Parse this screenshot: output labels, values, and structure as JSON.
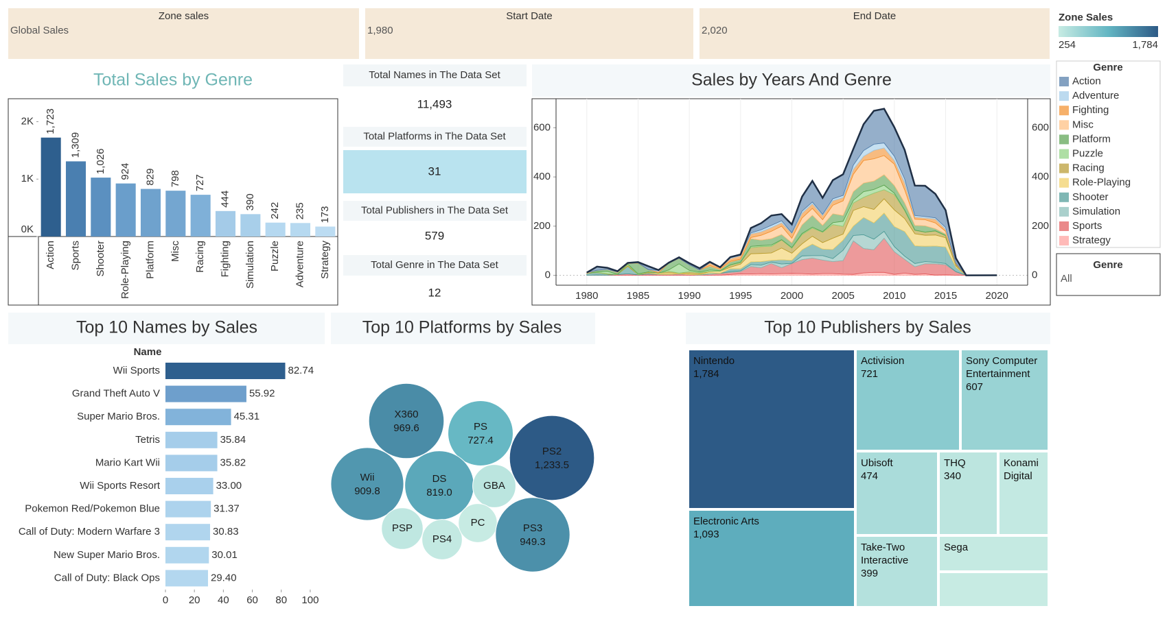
{
  "filters": [
    {
      "title": "Zone sales",
      "value": "Global Sales"
    },
    {
      "title": "Start Date",
      "value": "1,980"
    },
    {
      "title": "End Date",
      "value": "2,020"
    }
  ],
  "kpis": [
    {
      "title": "Total Names in The Data Set",
      "value": "11,493"
    },
    {
      "title": "Total Platforms in The Data Set",
      "value": "31"
    },
    {
      "title": "Total Publishers in The Data Set",
      "value": "579"
    },
    {
      "title": "Total Genre in The Data Set",
      "value": "12"
    }
  ],
  "zone_sales_legend": {
    "title": "Zone Sales",
    "ticks": [
      254,
      {
        "value": 1784,
        "label": "1,784"
      }
    ],
    "colors": [
      "#c7ebe3",
      "#63b6c3",
      "#2d5a86"
    ]
  },
  "genre_filter": {
    "title": "Genre",
    "value": "All"
  },
  "chart_data": [
    {
      "type": "bar",
      "title": "Total Sales by Genre",
      "categories": [
        "Action",
        "Sports",
        "Shooter",
        "Role-Playing",
        "Platform",
        "Misc",
        "Racing",
        "Fighting",
        "Simulation",
        "Puzzle",
        "Adventure",
        "Strategy"
      ],
      "values": [
        1723,
        1309,
        1026,
        924,
        829,
        798,
        727,
        444,
        390,
        242,
        235,
        173
      ],
      "value_labels": [
        "1,723",
        "1,309",
        "1,026",
        "924",
        "829",
        "798",
        "727",
        "444",
        "390",
        "242",
        "235",
        "173"
      ],
      "colors": [
        "#2e5f8e",
        "#4a7fb0",
        "#5b90c0",
        "#6a9ecb",
        "#6fa2cd",
        "#74a6d0",
        "#7fb0d8",
        "#a4cbe8",
        "#a8cfea",
        "#b5d8f0",
        "#b6d9f0",
        "#bcdcf2"
      ],
      "ylim": [
        0,
        2400
      ],
      "yticks": [
        {
          "value": 0,
          "label": "0K"
        },
        {
          "value": 1000,
          "label": "1K"
        },
        {
          "value": 2000,
          "label": "2K"
        }
      ]
    },
    {
      "type": "stacked_area",
      "title": "Sales by Years And Genre",
      "legend_title": "Genre",
      "x": [
        1980,
        1981,
        1982,
        1983,
        1984,
        1985,
        1986,
        1987,
        1988,
        1989,
        1990,
        1991,
        1992,
        1993,
        1994,
        1995,
        1996,
        1997,
        1998,
        1999,
        2000,
        2001,
        2002,
        2003,
        2004,
        2005,
        2006,
        2007,
        2008,
        2009,
        2010,
        2011,
        2012,
        2013,
        2014,
        2015,
        2016,
        2017,
        2020
      ],
      "series": [
        {
          "name": "Action",
          "color": "#4e79a7",
          "values": [
            0.3,
            14.8,
            6.5,
            2.9,
            1.9,
            3.5,
            13.7,
            1.1,
            1.7,
            4.6,
            6.4,
            6.8,
            3.8,
            2,
            2.1,
            3.8,
            20,
            27,
            40,
            27,
            34,
            59,
            86,
            67,
            76,
            86,
            66,
            107,
            136,
            139,
            118,
            118,
            122,
            125,
            97,
            70,
            20,
            0,
            0
          ]
        },
        {
          "name": "Adventure",
          "color": "#a0cbe8",
          "values": [
            0,
            0,
            0,
            0.4,
            0,
            0,
            0,
            4.4,
            0,
            0,
            0,
            0,
            0.1,
            0,
            4,
            1,
            4,
            8,
            9,
            8,
            2,
            8,
            7,
            5,
            8,
            9,
            17,
            23,
            25,
            20,
            17,
            15,
            6,
            6,
            5,
            8,
            1,
            0,
            0
          ]
        },
        {
          "name": "Fighting",
          "color": "#f28e2b",
          "values": [
            0.8,
            0,
            0,
            0,
            0,
            1.1,
            0,
            5.4,
            0,
            0,
            0,
            0.4,
            11,
            4.5,
            11,
            14,
            14.7,
            14,
            15,
            14,
            20,
            20,
            19,
            17,
            18,
            13,
            20,
            17,
            34,
            31,
            15,
            29,
            9,
            7,
            16,
            8,
            4,
            0,
            0
          ]
        },
        {
          "name": "Misc",
          "color": "#ffbe7d",
          "values": [
            2.7,
            0,
            0.9,
            2.1,
            1.5,
            0,
            0,
            0,
            0,
            1.3,
            0,
            0,
            3.4,
            3,
            3,
            1.5,
            5,
            20,
            30,
            34,
            19,
            28,
            28,
            23,
            35,
            60,
            71,
            92,
            91,
            78,
            87,
            54,
            25,
            25,
            24,
            11,
            1,
            0,
            0
          ]
        },
        {
          "name": "Platform",
          "color": "#59a14f",
          "values": [
            0,
            6.9,
            7,
            6.9,
            0.7,
            43.2,
            9.4,
            1.7,
            27.7,
            20.7,
            22.9,
            7.6,
            15,
            4.2,
            11.4,
            11,
            31,
            22,
            26,
            21,
            19,
            35,
            48,
            26,
            36,
            23,
            35,
            35,
            34,
            42,
            31,
            28,
            19,
            25,
            8,
            6,
            2,
            0,
            0
          ]
        },
        {
          "name": "Puzzle",
          "color": "#8cd17d",
          "values": [
            0,
            2.2,
            10,
            0.8,
            3.1,
            3.2,
            0,
            0,
            5.6,
            37.8,
            5.6,
            3.2,
            5.5,
            2.6,
            1.4,
            2.1,
            5,
            4,
            5,
            1,
            3,
            4,
            4,
            2,
            8,
            21,
            11,
            23,
            15,
            19,
            6,
            3,
            1,
            1,
            1,
            1,
            0,
            0,
            0
          ]
        },
        {
          "name": "Racing",
          "color": "#b6992d",
          "values": [
            0,
            0.5,
            1.6,
            0,
            6,
            0,
            2,
            0,
            6.7,
            0,
            6.3,
            4.6,
            1.1,
            0.1,
            8.1,
            5.9,
            25,
            28,
            27,
            33,
            20,
            38,
            33,
            42,
            55,
            31,
            30,
            38,
            66,
            37,
            62,
            32,
            14,
            12,
            16,
            8,
            3,
            0,
            0
          ]
        },
        {
          "name": "Role-Playing",
          "color": "#f1ce63",
          "values": [
            0,
            0,
            0,
            0,
            0,
            0,
            2.5,
            4.7,
            5.9,
            2.2,
            4.5,
            2.9,
            5.3,
            8,
            7,
            19,
            33,
            33,
            30,
            48,
            29,
            24,
            32,
            26,
            46,
            25,
            64,
            44,
            55,
            58,
            68,
            53,
            49,
            45,
            45,
            38,
            6,
            0.05,
            0
          ]
        },
        {
          "name": "Shooter",
          "color": "#499894",
          "values": [
            7.1,
            10,
            3.8,
            0.5,
            31.1,
            1,
            3.9,
            0.7,
            0.5,
            1.2,
            0,
            1.4,
            0.6,
            0.7,
            11,
            8,
            11,
            15,
            7,
            17,
            12,
            25,
            47,
            27,
            37,
            41,
            38,
            70,
            66,
            74,
            81,
            100,
            72,
            62,
            66,
            67,
            18,
            0,
            0
          ]
        },
        {
          "name": "Simulation",
          "color": "#86bcb6",
          "values": [
            0,
            0.4,
            0,
            0,
            0,
            0.04,
            0,
            0,
            0.03,
            0,
            0.2,
            0,
            4.8,
            0,
            3.6,
            3.1,
            8,
            10,
            6,
            15,
            1,
            15,
            10,
            18,
            12,
            42,
            22,
            56,
            43,
            28,
            21,
            13,
            13,
            9,
            6,
            5,
            0,
            0,
            0.29
          ]
        },
        {
          "name": "Sports",
          "color": "#e15759",
          "values": [
            0.5,
            0.8,
            1.1,
            3.2,
            6.2,
            1.9,
            5.6,
            3.7,
            3.6,
            5.7,
            3.6,
            0.9,
            4,
            7,
            8.1,
            9,
            30,
            24,
            42,
            24,
            40,
            57,
            65,
            55,
            49,
            55,
            136,
            99,
            92,
            139,
            92,
            56,
            31,
            41,
            46,
            41,
            14,
            0,
            0
          ]
        },
        {
          "name": "Strategy",
          "color": "#ff9d9a",
          "values": [
            0,
            0,
            0,
            0,
            0,
            0,
            0,
            0,
            0,
            0,
            0,
            0.9,
            0.3,
            0.8,
            3.6,
            6.5,
            5.7,
            7,
            6,
            7,
            8,
            7,
            5,
            7,
            7,
            5,
            4,
            10,
            12,
            12,
            4,
            9,
            4,
            6,
            1,
            2,
            0.5,
            0,
            0
          ]
        }
      ],
      "xlim": [
        1977,
        2023
      ],
      "xticks": [
        1980,
        1985,
        1990,
        1995,
        2000,
        2005,
        2010,
        2015,
        2020
      ],
      "ylim": [
        -40,
        718
      ],
      "yticks": [
        0,
        200,
        400,
        600
      ],
      "grid": true,
      "right_axis": true
    },
    {
      "type": "hbar",
      "title": "Top 10 Names by Sales",
      "y_label": "Name",
      "categories": [
        "Wii Sports",
        "Grand Theft Auto V",
        "Super Mario Bros.",
        "Tetris",
        "Mario Kart Wii",
        "Wii Sports Resort",
        "Pokemon Red/Pokemon Blue",
        "Call of Duty: Modern Warfare 3",
        "New Super Mario Bros.",
        "Call of Duty: Black Ops"
      ],
      "values": [
        82.74,
        55.92,
        45.31,
        35.84,
        35.82,
        33,
        31.37,
        30.83,
        30.01,
        29.4
      ],
      "value_labels": [
        "82.74",
        "55.92",
        "45.31",
        "35.84",
        "35.82",
        "33.00",
        "31.37",
        "30.83",
        "30.01",
        "29.40"
      ],
      "colors": [
        "#2e5f8e",
        "#6e9fcc",
        "#82b3da",
        "#a5cdea",
        "#a5cdea",
        "#a9d0ec",
        "#add3ed",
        "#b0d5ee",
        "#b1d6ee",
        "#b3d7ef"
      ],
      "xlim": [
        0,
        110
      ],
      "xticks": [
        0,
        20,
        40,
        60,
        80,
        100
      ]
    },
    {
      "type": "bubble",
      "title": "Top 10 Platforms by Sales",
      "categories": [
        "X360",
        "PS",
        "PS2",
        "Wii",
        "DS",
        "GBA",
        "PSP",
        "PS4",
        "PC",
        "PS3"
      ],
      "values": [
        969.6,
        727.4,
        1233.5,
        909.8,
        819.0,
        318.5,
        296.3,
        278.1,
        258.8,
        949.3
      ],
      "value_labels": [
        "969.6",
        "727.4",
        "1,233.5",
        "909.8",
        "819.0",
        null,
        null,
        null,
        null,
        "949.3"
      ]
    },
    {
      "type": "treemap",
      "title": "Top 10 Publishers by Sales",
      "categories": [
        "Nintendo",
        "Electronic Arts",
        "Activision",
        "Sony Computer Entertainment",
        "Ubisoft",
        "THQ",
        "Konami Digital",
        "Take-Two Interactive",
        "Sega",
        null
      ],
      "values": [
        1784,
        1093,
        721,
        607,
        474,
        340,
        283,
        399,
        273,
        254
      ],
      "value_labels": [
        "1,784",
        "1,093",
        "721",
        "607",
        "474",
        "340",
        null,
        "399",
        null,
        null
      ]
    }
  ]
}
